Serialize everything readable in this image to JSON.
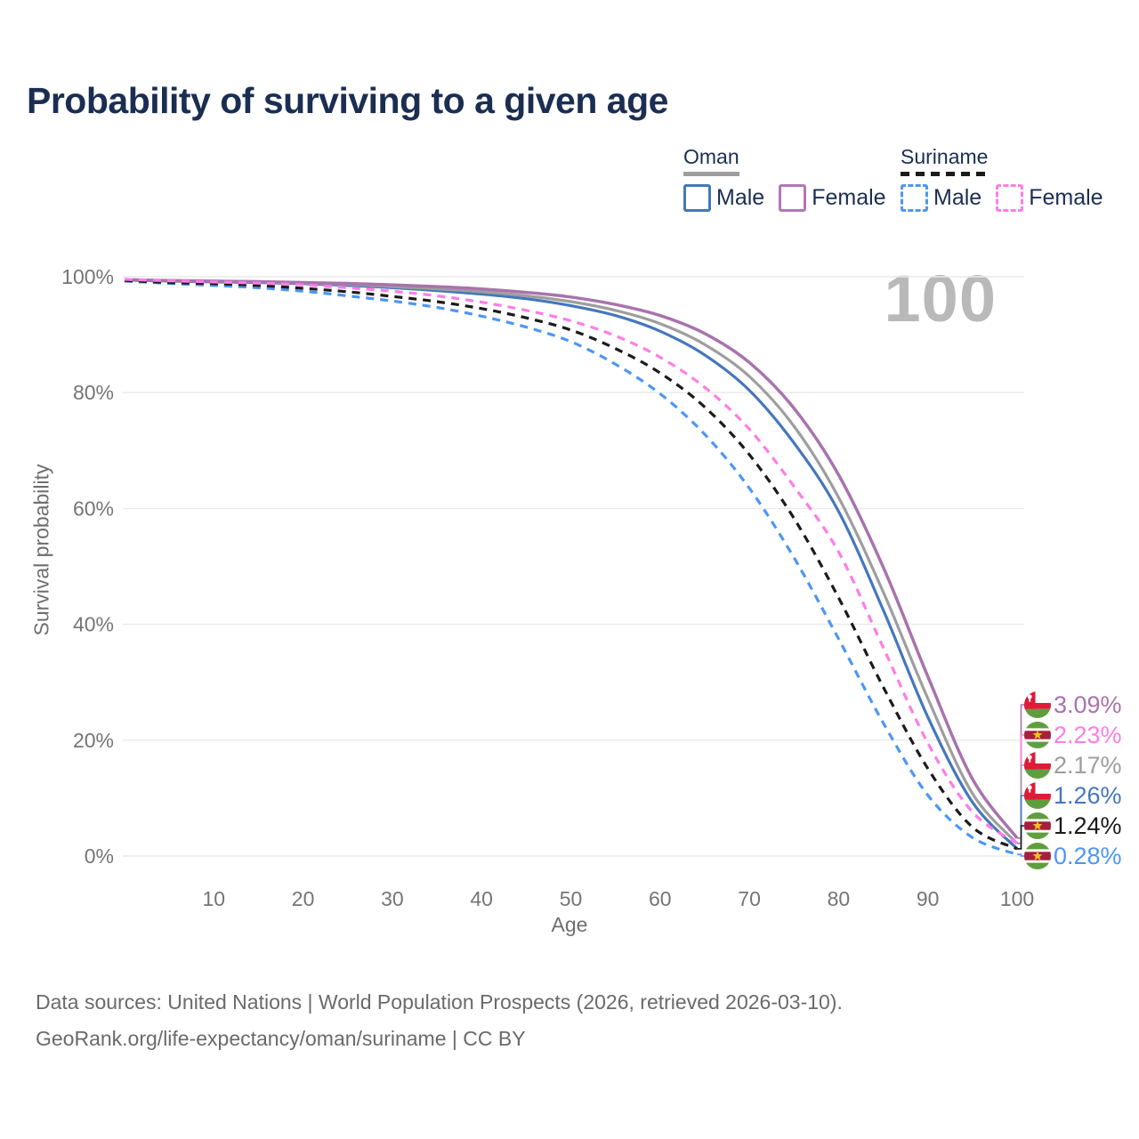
{
  "title": "Probability of surviving to a given age",
  "legend": {
    "groups": [
      {
        "name": "Oman",
        "line_style": "solid",
        "underline_color": "#9e9e9e",
        "items": [
          {
            "label": "Male",
            "color": "#4577bb"
          },
          {
            "label": "Female",
            "color": "#b277b6"
          }
        ]
      },
      {
        "name": "Suriname",
        "line_style": "dashed",
        "underline_color": "#1b1b1b",
        "items": [
          {
            "label": "Male",
            "color": "#4d96f5"
          },
          {
            "label": "Female",
            "color": "#ff7de5"
          }
        ]
      }
    ]
  },
  "colors": {
    "grid": "#eaeaea",
    "tick": "#757575",
    "title": "#1b2e52",
    "watermark": "#b9b9b9",
    "footer": "#6a6a6a"
  },
  "flag_colors": {
    "oman": {
      "red": "#de1b38",
      "green": "#5f9e3e",
      "white": "#ffffff"
    },
    "suriname": {
      "green": "#5f9e3e",
      "red": "#a61f3c",
      "yellow": "#eec41f",
      "white": "#ffffff"
    }
  },
  "chart_data": {
    "type": "line",
    "title": "Probability of surviving to a given age",
    "xlabel": "Age",
    "ylabel": "Survival probability",
    "xlim": [
      0,
      100
    ],
    "ylim": [
      0,
      100
    ],
    "grid": "horizontal",
    "legend_position": "top-right",
    "age_annotation": "100",
    "x_ticks": [
      10,
      20,
      30,
      40,
      50,
      60,
      70,
      80,
      90,
      100
    ],
    "y_ticks": [
      {
        "value": 0,
        "label": "0%"
      },
      {
        "value": 20,
        "label": "20%"
      },
      {
        "value": 40,
        "label": "40%"
      },
      {
        "value": 60,
        "label": "60%"
      },
      {
        "value": 80,
        "label": "80%"
      },
      {
        "value": 100,
        "label": "100%"
      }
    ],
    "ages": [
      0,
      5,
      10,
      15,
      20,
      25,
      30,
      35,
      40,
      45,
      50,
      55,
      60,
      65,
      70,
      75,
      80,
      85,
      90,
      95,
      100
    ],
    "series": [
      {
        "name": "Oman Male",
        "country": "Oman",
        "sex": "Male",
        "color": "#4577bb",
        "dashed": false,
        "flag": "oman",
        "end_label": "1.26%",
        "values": [
          99.4,
          99.25,
          99.1,
          99.0,
          98.8,
          98.5,
          98.1,
          97.6,
          97.0,
          96.2,
          95.0,
          93.3,
          90.6,
          86.5,
          80.4,
          71.3,
          59.5,
          42.5,
          24.0,
          9.3,
          1.26
        ]
      },
      {
        "name": "Oman Total",
        "country": "Oman",
        "sex": "Both",
        "color": "#9e9e9e",
        "dashed": false,
        "flag": "oman",
        "end_label": "2.17%",
        "values": [
          99.45,
          99.3,
          99.2,
          99.1,
          98.9,
          98.7,
          98.3,
          97.9,
          97.4,
          96.7,
          95.7,
          94.2,
          91.9,
          88.3,
          82.8,
          74.2,
          61.9,
          45.6,
          27.2,
          10.8,
          2.17
        ]
      },
      {
        "name": "Oman Female",
        "country": "Oman",
        "sex": "Female",
        "color": "#a873ad",
        "dashed": false,
        "flag": "oman",
        "end_label": "3.09%",
        "values": [
          99.5,
          99.35,
          99.25,
          99.15,
          99.0,
          98.85,
          98.6,
          98.3,
          97.9,
          97.3,
          96.5,
          95.2,
          93.3,
          90.2,
          85.2,
          77.3,
          65.8,
          49.9,
          31.0,
          13.3,
          3.09
        ]
      },
      {
        "name": "Suriname Male",
        "country": "Suriname",
        "sex": "Male",
        "color": "#4d96f5",
        "dashed": true,
        "flag": "suriname",
        "end_label": "0.28%",
        "values": [
          99.25,
          98.85,
          98.5,
          98.1,
          97.5,
          96.7,
          95.8,
          94.7,
          93.2,
          91.3,
          88.8,
          84.9,
          79.8,
          72.8,
          63.5,
          51.5,
          37.5,
          23.0,
          10.5,
          3.2,
          0.28
        ]
      },
      {
        "name": "Suriname Total",
        "country": "Suriname",
        "sex": "Both",
        "color": "#1b1b1b",
        "dashed": true,
        "flag": "suriname",
        "end_label": "1.24%",
        "values": [
          99.35,
          99.0,
          98.8,
          98.5,
          98.0,
          97.4,
          96.6,
          95.7,
          94.5,
          92.9,
          90.8,
          87.6,
          83.4,
          77.5,
          69.3,
          58.3,
          44.6,
          29.2,
          15.1,
          5.0,
          1.24
        ]
      },
      {
        "name": "Suriname Female",
        "country": "Suriname",
        "sex": "Female",
        "color": "#ff7de5",
        "dashed": true,
        "flag": "suriname",
        "end_label": "2.23%",
        "values": [
          99.55,
          99.3,
          99.1,
          98.9,
          98.6,
          98.1,
          97.5,
          96.7,
          95.6,
          94.2,
          92.4,
          89.8,
          86.1,
          80.9,
          73.7,
          63.8,
          52.5,
          36.0,
          19.5,
          7.6,
          2.23
        ]
      }
    ]
  },
  "footer": {
    "line1": "Data sources: United Nations | World Population Prospects (2026, retrieved 2026-03-10).",
    "line2": "GeoRank.org/life-expectancy/oman/suriname | CC BY"
  }
}
